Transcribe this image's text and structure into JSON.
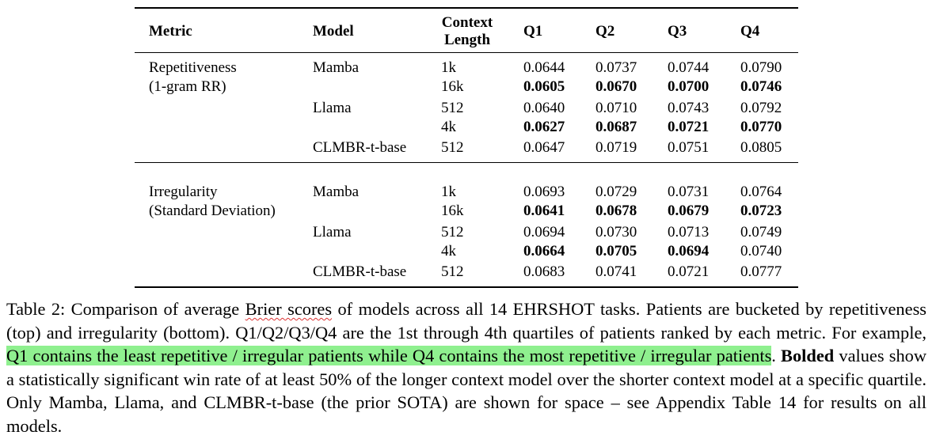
{
  "table": {
    "columns": [
      "Metric",
      "Model",
      "Context Length",
      "Q1",
      "Q2",
      "Q3",
      "Q4"
    ],
    "groups": [
      {
        "metric": [
          "Repetitiveness",
          "(1-gram RR)"
        ],
        "models": [
          {
            "model": "Mamba",
            "rows": [
              {
                "context": "1k",
                "values": [
                  "0.0644",
                  "0.0737",
                  "0.0744",
                  "0.0790"
                ],
                "bold": [
                  false,
                  false,
                  false,
                  false
                ]
              },
              {
                "context": "16k",
                "values": [
                  "0.0605",
                  "0.0670",
                  "0.0700",
                  "0.0746"
                ],
                "bold": [
                  true,
                  true,
                  true,
                  true
                ]
              }
            ]
          },
          {
            "model": "Llama",
            "rows": [
              {
                "context": "512",
                "values": [
                  "0.0640",
                  "0.0710",
                  "0.0743",
                  "0.0792"
                ],
                "bold": [
                  false,
                  false,
                  false,
                  false
                ]
              },
              {
                "context": "4k",
                "values": [
                  "0.0627",
                  "0.0687",
                  "0.0721",
                  "0.0770"
                ],
                "bold": [
                  true,
                  true,
                  true,
                  true
                ]
              }
            ]
          },
          {
            "model": "CLMBR-t-base",
            "rows": [
              {
                "context": "512",
                "values": [
                  "0.0647",
                  "0.0719",
                  "0.0751",
                  "0.0805"
                ],
                "bold": [
                  false,
                  false,
                  false,
                  false
                ]
              }
            ]
          }
        ]
      },
      {
        "metric": [
          "Irregularity",
          "(Standard Deviation)"
        ],
        "models": [
          {
            "model": "Mamba",
            "rows": [
              {
                "context": "1k",
                "values": [
                  "0.0693",
                  "0.0729",
                  "0.0731",
                  "0.0764"
                ],
                "bold": [
                  false,
                  false,
                  false,
                  false
                ]
              },
              {
                "context": "16k",
                "values": [
                  "0.0641",
                  "0.0678",
                  "0.0679",
                  "0.0723"
                ],
                "bold": [
                  true,
                  true,
                  true,
                  true
                ]
              }
            ]
          },
          {
            "model": "Llama",
            "rows": [
              {
                "context": "512",
                "values": [
                  "0.0694",
                  "0.0730",
                  "0.0713",
                  "0.0749"
                ],
                "bold": [
                  false,
                  false,
                  false,
                  false
                ]
              },
              {
                "context": "4k",
                "values": [
                  "0.0664",
                  "0.0705",
                  "0.0694",
                  "0.0740"
                ],
                "bold": [
                  true,
                  true,
                  true,
                  false
                ]
              }
            ]
          },
          {
            "model": "CLMBR-t-base",
            "rows": [
              {
                "context": "512",
                "values": [
                  "0.0683",
                  "0.0741",
                  "0.0721",
                  "0.0777"
                ],
                "bold": [
                  false,
                  false,
                  false,
                  false
                ]
              }
            ]
          }
        ]
      }
    ]
  },
  "caption": [
    {
      "text": "Table 2: Comparison of average ",
      "style": "plain"
    },
    {
      "text": "Brier scores",
      "style": "underline"
    },
    {
      "text": " of models across all 14 EHRSHOT tasks. Patients are bucketed by repetitiveness (top) and irregularity (bottom). Q1/Q2/Q3/Q4 are the 1st through 4th quartiles of patients ranked by each metric. For example, ",
      "style": "plain"
    },
    {
      "text": "Q1 contains the least repetitive / irregular patients while Q4 contains the most repetitive / irregular patients",
      "style": "highlight"
    },
    {
      "text": ". ",
      "style": "plain"
    },
    {
      "text": "Bolded",
      "style": "bold"
    },
    {
      "text": " values show a statistically significant win rate of at least 50% of the longer context model over the shorter context model at a specific quartile. Only Mamba, Llama, and CLMBR-t-base (the prior SOTA) are shown for space – see Appendix Table 14 for results on all models.",
      "style": "plain"
    }
  ]
}
